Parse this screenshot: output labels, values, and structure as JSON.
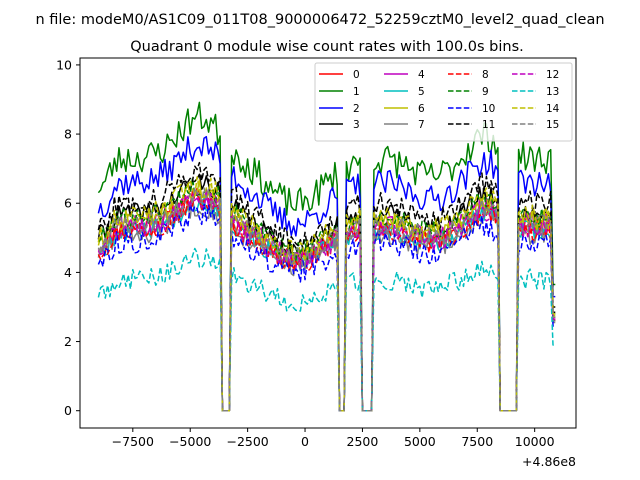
{
  "chart_data": {
    "type": "line",
    "suptitle": "n file: modeM0/AS1C09_011T08_9000006472_52259cztM0_level2_quad_clean",
    "title": "Quadrant 0 module wise count rates with 100.0s bins.",
    "xlabel": "",
    "ylabel": "",
    "x_offset_label": "+4.86e8",
    "xlim": [
      -9800,
      11800
    ],
    "ylim": [
      -0.5,
      10.2
    ],
    "x_ticks": [
      -7500,
      -5000,
      -2500,
      0,
      2500,
      5000,
      7500,
      10000
    ],
    "x_tick_labels": [
      "−7500",
      "−5000",
      "−2500",
      "0",
      "2500",
      "5000",
      "7500",
      "10000"
    ],
    "y_ticks": [
      0,
      2,
      4,
      6,
      8,
      10
    ],
    "y_tick_labels": [
      "0",
      "2",
      "4",
      "6",
      "8",
      "10"
    ],
    "bin_seconds": 100,
    "x_start": -9000,
    "x_end": 10900,
    "gaps": [
      [
        -3600,
        -3300
      ],
      [
        1500,
        1700
      ],
      [
        2500,
        2900
      ],
      [
        8500,
        9200
      ]
    ],
    "legend_position": "upper right",
    "legend_columns": 4,
    "series": [
      {
        "name": "0",
        "color": "#ff0000",
        "dash": "solid",
        "level": 5.3,
        "amplitude": 0.3,
        "seed": 11
      },
      {
        "name": "1",
        "color": "#008000",
        "dash": "solid",
        "level": 7.3,
        "amplitude": 0.45,
        "seed": 23
      },
      {
        "name": "2",
        "color": "#0000ff",
        "dash": "solid",
        "level": 6.6,
        "amplitude": 0.4,
        "seed": 37
      },
      {
        "name": "3",
        "color": "#000000",
        "dash": "solid",
        "level": 5.7,
        "amplitude": 0.3,
        "seed": 41
      },
      {
        "name": "4",
        "color": "#bf00bf",
        "dash": "solid",
        "level": 5.4,
        "amplitude": 0.35,
        "seed": 53
      },
      {
        "name": "5",
        "color": "#00bfbf",
        "dash": "solid",
        "level": 5.2,
        "amplitude": 0.3,
        "seed": 67
      },
      {
        "name": "6",
        "color": "#bfbf00",
        "dash": "solid",
        "level": 5.5,
        "amplitude": 0.3,
        "seed": 71
      },
      {
        "name": "7",
        "color": "#808080",
        "dash": "solid",
        "level": 5.1,
        "amplitude": 0.3,
        "seed": 83
      },
      {
        "name": "8",
        "color": "#ff0000",
        "dash": "dashed",
        "level": 5.2,
        "amplitude": 0.3,
        "seed": 97
      },
      {
        "name": "9",
        "color": "#008000",
        "dash": "dashed",
        "level": 5.6,
        "amplitude": 0.3,
        "seed": 101
      },
      {
        "name": "10",
        "color": "#0000ff",
        "dash": "dashed",
        "level": 4.9,
        "amplitude": 0.35,
        "seed": 113
      },
      {
        "name": "11",
        "color": "#000000",
        "dash": "dashed",
        "level": 6.0,
        "amplitude": 0.35,
        "seed": 127
      },
      {
        "name": "12",
        "color": "#bf00bf",
        "dash": "dashed",
        "level": 5.3,
        "amplitude": 0.3,
        "seed": 131
      },
      {
        "name": "13",
        "color": "#00bfbf",
        "dash": "dashed",
        "level": 3.8,
        "amplitude": 0.3,
        "seed": 149
      },
      {
        "name": "14",
        "color": "#bfbf00",
        "dash": "dashed",
        "level": 5.6,
        "amplitude": 0.35,
        "seed": 151
      },
      {
        "name": "15",
        "color": "#808080",
        "dash": "dashed",
        "level": 5.4,
        "amplitude": 0.3,
        "seed": 163
      }
    ]
  }
}
